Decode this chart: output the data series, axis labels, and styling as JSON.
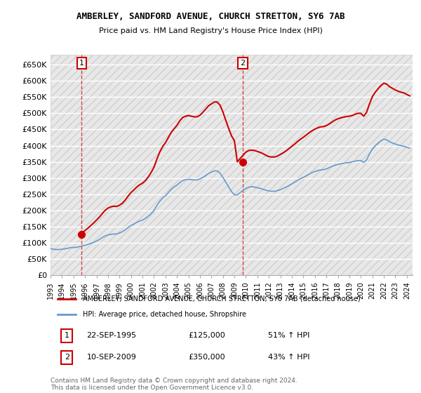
{
  "title": "AMBERLEY, SANDFORD AVENUE, CHURCH STRETTON, SY6 7AB",
  "subtitle": "Price paid vs. HM Land Registry's House Price Index (HPI)",
  "xlabel": "",
  "ylabel": "",
  "ylim": [
    0,
    680000
  ],
  "yticks": [
    0,
    50000,
    100000,
    150000,
    200000,
    250000,
    300000,
    350000,
    400000,
    450000,
    500000,
    550000,
    600000,
    650000
  ],
  "ytick_labels": [
    "£0",
    "£50K",
    "£100K",
    "£150K",
    "£200K",
    "£250K",
    "£300K",
    "£350K",
    "£400K",
    "£450K",
    "£500K",
    "£550K",
    "£600K",
    "£650K"
  ],
  "background_color": "#ffffff",
  "plot_bg_color": "#f0f0f0",
  "grid_color": "#ffffff",
  "hpi_color": "#6699cc",
  "price_color": "#cc0000",
  "transaction1": {
    "date": "22-SEP-1995",
    "price": 125000,
    "label": "1",
    "pct": "51% ↑ HPI"
  },
  "transaction2": {
    "date": "10-SEP-2009",
    "price": 350000,
    "label": "2",
    "pct": "43% ↑ HPI"
  },
  "legend_price_label": "AMBERLEY, SANDFORD AVENUE, CHURCH STRETTON, SY6 7AB (detached house)",
  "legend_hpi_label": "HPI: Average price, detached house, Shropshire",
  "footnote": "Contains HM Land Registry data © Crown copyright and database right 2024.\nThis data is licensed under the Open Government Licence v3.0.",
  "hpi_data": {
    "years": [
      1993.0,
      1993.25,
      1993.5,
      1993.75,
      1994.0,
      1994.25,
      1994.5,
      1994.75,
      1995.0,
      1995.25,
      1995.5,
      1995.75,
      1996.0,
      1996.25,
      1996.5,
      1996.75,
      1997.0,
      1997.25,
      1997.5,
      1997.75,
      1998.0,
      1998.25,
      1998.5,
      1998.75,
      1999.0,
      1999.25,
      1999.5,
      1999.75,
      2000.0,
      2000.25,
      2000.5,
      2000.75,
      2001.0,
      2001.25,
      2001.5,
      2001.75,
      2002.0,
      2002.25,
      2002.5,
      2002.75,
      2003.0,
      2003.25,
      2003.5,
      2003.75,
      2004.0,
      2004.25,
      2004.5,
      2004.75,
      2005.0,
      2005.25,
      2005.5,
      2005.75,
      2006.0,
      2006.25,
      2006.5,
      2006.75,
      2007.0,
      2007.25,
      2007.5,
      2007.75,
      2008.0,
      2008.25,
      2008.5,
      2008.75,
      2009.0,
      2009.25,
      2009.5,
      2009.75,
      2010.0,
      2010.25,
      2010.5,
      2010.75,
      2011.0,
      2011.25,
      2011.5,
      2011.75,
      2012.0,
      2012.25,
      2012.5,
      2012.75,
      2013.0,
      2013.25,
      2013.5,
      2013.75,
      2014.0,
      2014.25,
      2014.5,
      2014.75,
      2015.0,
      2015.25,
      2015.5,
      2015.75,
      2016.0,
      2016.25,
      2016.5,
      2016.75,
      2017.0,
      2017.25,
      2017.5,
      2017.75,
      2018.0,
      2018.25,
      2018.5,
      2018.75,
      2019.0,
      2019.25,
      2019.5,
      2019.75,
      2020.0,
      2020.25,
      2020.5,
      2020.75,
      2021.0,
      2021.25,
      2021.5,
      2021.75,
      2022.0,
      2022.25,
      2022.5,
      2022.75,
      2023.0,
      2023.25,
      2023.5,
      2023.75,
      2024.0,
      2024.25
    ],
    "values": [
      82000,
      80000,
      79000,
      79000,
      80000,
      81000,
      83000,
      85000,
      85000,
      86000,
      88000,
      90000,
      92000,
      95000,
      98000,
      101000,
      105000,
      110000,
      116000,
      121000,
      124000,
      126000,
      127000,
      127000,
      130000,
      134000,
      140000,
      147000,
      153000,
      158000,
      163000,
      167000,
      170000,
      175000,
      182000,
      190000,
      200000,
      215000,
      228000,
      238000,
      245000,
      255000,
      265000,
      272000,
      278000,
      286000,
      292000,
      295000,
      296000,
      295000,
      294000,
      294000,
      297000,
      302000,
      308000,
      314000,
      318000,
      322000,
      322000,
      315000,
      302000,
      287000,
      272000,
      258000,
      248000,
      248000,
      255000,
      262000,
      268000,
      272000,
      273000,
      272000,
      270000,
      268000,
      265000,
      262000,
      260000,
      259000,
      259000,
      261000,
      264000,
      268000,
      272000,
      277000,
      282000,
      287000,
      293000,
      298000,
      302000,
      307000,
      312000,
      317000,
      320000,
      323000,
      325000,
      326000,
      328000,
      332000,
      336000,
      339000,
      342000,
      344000,
      346000,
      347000,
      348000,
      350000,
      352000,
      354000,
      354000,
      348000,
      356000,
      374000,
      390000,
      400000,
      408000,
      415000,
      420000,
      418000,
      412000,
      408000,
      405000,
      402000,
      400000,
      398000,
      395000,
      392000
    ]
  },
  "price_data": {
    "years": [
      1993.0,
      1993.25,
      1993.5,
      1993.75,
      1994.0,
      1994.25,
      1994.5,
      1994.75,
      1995.0,
      1995.25,
      1995.5,
      1995.75,
      1996.0,
      1996.25,
      1996.5,
      1996.75,
      1997.0,
      1997.25,
      1997.5,
      1997.75,
      1998.0,
      1998.25,
      1998.5,
      1998.75,
      1999.0,
      1999.25,
      1999.5,
      1999.75,
      2000.0,
      2000.25,
      2000.5,
      2000.75,
      2001.0,
      2001.25,
      2001.5,
      2001.75,
      2002.0,
      2002.25,
      2002.5,
      2002.75,
      2003.0,
      2003.25,
      2003.5,
      2003.75,
      2004.0,
      2004.25,
      2004.5,
      2004.75,
      2005.0,
      2005.25,
      2005.5,
      2005.75,
      2006.0,
      2006.25,
      2006.5,
      2006.75,
      2007.0,
      2007.25,
      2007.5,
      2007.75,
      2008.0,
      2008.25,
      2008.5,
      2008.75,
      2009.0,
      2009.25,
      2009.5,
      2009.75,
      2010.0,
      2010.25,
      2010.5,
      2010.75,
      2011.0,
      2011.25,
      2011.5,
      2011.75,
      2012.0,
      2012.25,
      2012.5,
      2012.75,
      2013.0,
      2013.25,
      2013.5,
      2013.75,
      2014.0,
      2014.25,
      2014.5,
      2014.75,
      2015.0,
      2015.25,
      2015.5,
      2015.75,
      2016.0,
      2016.25,
      2016.5,
      2016.75,
      2017.0,
      2017.25,
      2017.5,
      2017.75,
      2018.0,
      2018.25,
      2018.5,
      2018.75,
      2019.0,
      2019.25,
      2019.5,
      2019.75,
      2020.0,
      2020.25,
      2020.5,
      2020.75,
      2021.0,
      2021.25,
      2021.5,
      2021.75,
      2022.0,
      2022.25,
      2022.5,
      2022.75,
      2023.0,
      2023.25,
      2023.5,
      2023.75,
      2024.0,
      2024.25
    ],
    "values": [
      null,
      null,
      null,
      null,
      null,
      null,
      null,
      null,
      null,
      null,
      125000,
      131250,
      137500,
      145000,
      153000,
      161000,
      170000,
      179000,
      190000,
      200000,
      207000,
      211000,
      213000,
      212000,
      216000,
      222000,
      232000,
      244000,
      255000,
      263000,
      272000,
      279000,
      284000,
      292000,
      303000,
      317000,
      333000,
      358000,
      380000,
      397000,
      409000,
      425000,
      441000,
      452000,
      463000,
      477000,
      487000,
      491000,
      493000,
      491000,
      489000,
      489000,
      494000,
      503000,
      513000,
      523000,
      529000,
      535000,
      535000,
      525000,
      504000,
      478000,
      453000,
      430000,
      415000,
      350000,
      360000,
      370000,
      380000,
      385000,
      386000,
      385000,
      382000,
      379000,
      375000,
      370000,
      366000,
      365000,
      365000,
      368000,
      373000,
      378000,
      384000,
      391000,
      398000,
      405000,
      413000,
      420000,
      426000,
      433000,
      440000,
      446000,
      451000,
      455000,
      458000,
      459000,
      462000,
      467000,
      473000,
      479000,
      483000,
      486000,
      488000,
      490000,
      491000,
      493000,
      497000,
      500000,
      500000,
      491000,
      503000,
      529000,
      551000,
      565000,
      576000,
      586000,
      593000,
      590000,
      582000,
      577000,
      572000,
      568000,
      565000,
      563000,
      558000,
      554000
    ]
  }
}
